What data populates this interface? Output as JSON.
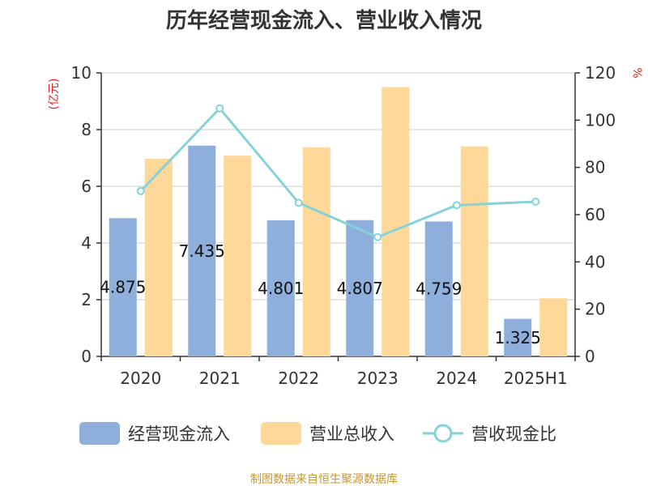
{
  "chart_data": {
    "type": "bar",
    "title": "历年经营现金流入、营业收入情况",
    "categories": [
      "2020",
      "2021",
      "2022",
      "2023",
      "2024",
      "2025H1"
    ],
    "ylabel_left": "(亿元)",
    "ylabel_right": "%",
    "ylim_left": [
      0,
      10
    ],
    "ylim_right": [
      0,
      120
    ],
    "yticks_left": [
      "0",
      "2",
      "4",
      "6",
      "8",
      "10"
    ],
    "yticks_right": [
      "0",
      "20",
      "40",
      "60",
      "80",
      "100",
      "120"
    ],
    "grid": true,
    "legend_position": "bottom",
    "series": [
      {
        "name": "经营现金流入",
        "kind": "bar",
        "axis": "left",
        "color": "#8eaedc",
        "values": [
          4.875,
          7.435,
          4.801,
          4.807,
          4.759,
          1.325
        ],
        "labels": [
          "4.875",
          "7.435",
          "4.801",
          "4.807",
          "4.759",
          "1.325"
        ]
      },
      {
        "name": "营业总收入",
        "kind": "bar",
        "axis": "left",
        "color": "#fdd898",
        "values": [
          6.97,
          7.08,
          7.37,
          9.5,
          7.41,
          2.05
        ]
      },
      {
        "name": "营收现金比",
        "kind": "line",
        "axis": "right",
        "color": "#86d2d8",
        "values": [
          70,
          105,
          65,
          50.5,
          64,
          65.5
        ]
      }
    ],
    "source": "制图数据来自恒生聚源数据库"
  }
}
